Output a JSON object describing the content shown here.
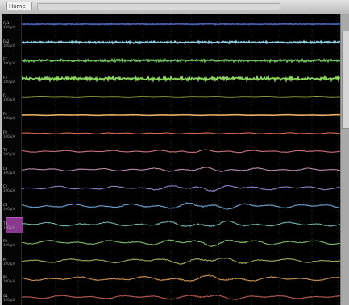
{
  "window": {
    "title_tab": "Home",
    "title_bar_text": ""
  },
  "colors": {
    "background": "#000000",
    "grid": "#3a3a3a",
    "channel_colors": [
      "#4a5fb8",
      "#8fd0e6",
      "#6ec25c",
      "#8fd85e",
      "#cfe05a",
      "#e6b060",
      "#d9694e",
      "#c7727a",
      "#b58aa6",
      "#8a7fc0",
      "#6b9fd0",
      "#6fb0a8",
      "#7fb66a",
      "#9aa85a",
      "#c89050",
      "#b55a50"
    ]
  },
  "channels": [
    {
      "name": "Fp1",
      "scale": "100 µV"
    },
    {
      "name": "Fp2",
      "scale": "100 µV"
    },
    {
      "name": "F7",
      "scale": "100 µV"
    },
    {
      "name": "F3",
      "scale": "100 µV"
    },
    {
      "name": "Fz",
      "scale": "100 µV"
    },
    {
      "name": "F4",
      "scale": "100 µV"
    },
    {
      "name": "F8",
      "scale": "100 µV"
    },
    {
      "name": "T3",
      "scale": "100 µV"
    },
    {
      "name": "C3",
      "scale": "100 µV"
    },
    {
      "name": "Cz",
      "scale": "100 µV"
    },
    {
      "name": "C4",
      "scale": "100 µV"
    },
    {
      "name": "T4",
      "scale": "100 µV"
    },
    {
      "name": "P3",
      "scale": "100 µV"
    },
    {
      "name": "Pz",
      "scale": "100 µV"
    },
    {
      "name": "P4",
      "scale": "100 µV"
    },
    {
      "name": "O1",
      "scale": "100 µV"
    }
  ],
  "selected_channel_index": 11
}
